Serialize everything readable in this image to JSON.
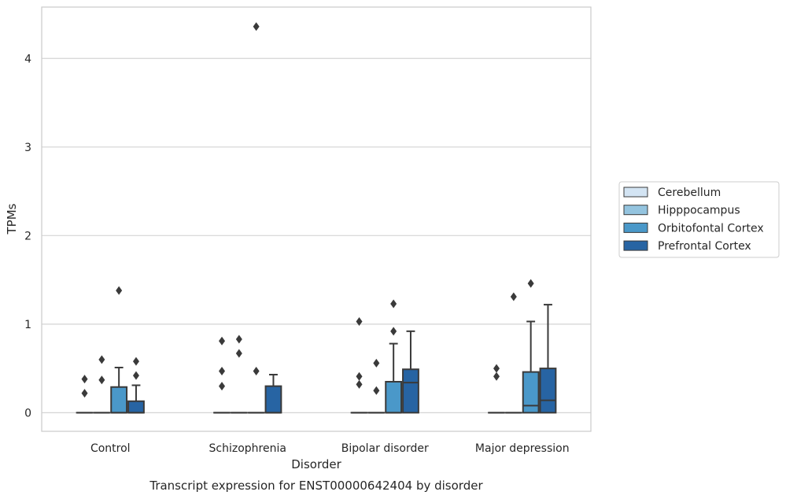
{
  "chart_data": {
    "type": "box",
    "title": "",
    "caption": "Transcript expression for ENST00000642404 by disorder",
    "xlabel": "Disorder",
    "ylabel": "TPMs",
    "ylim": [
      -0.21,
      4.58
    ],
    "yticks": [
      0,
      1,
      2,
      3,
      4
    ],
    "grid": "horizontal",
    "legend_position": "right",
    "categories": [
      "Control",
      "Schizophrenia",
      "Bipolar disorder",
      "Major depression"
    ],
    "series": [
      {
        "name": "Cerebellum",
        "color": "#d3e4f3",
        "boxes": [
          {
            "q1": 0,
            "median": 0,
            "q3": 0,
            "whisker_low": 0,
            "whisker_high": 0,
            "outliers": [
              0.22,
              0.38
            ]
          },
          {
            "q1": 0,
            "median": 0,
            "q3": 0,
            "whisker_low": 0,
            "whisker_high": 0,
            "outliers": [
              0.3,
              0.47,
              0.81
            ]
          },
          {
            "q1": 0,
            "median": 0,
            "q3": 0,
            "whisker_low": 0,
            "whisker_high": 0,
            "outliers": [
              0.32,
              0.41,
              1.03
            ]
          },
          {
            "q1": 0,
            "median": 0,
            "q3": 0,
            "whisker_low": 0,
            "whisker_high": 0,
            "outliers": [
              0.41,
              0.5
            ]
          }
        ]
      },
      {
        "name": "Hipppocampus",
        "color": "#94c4df",
        "boxes": [
          {
            "q1": 0,
            "median": 0,
            "q3": 0,
            "whisker_low": 0,
            "whisker_high": 0,
            "outliers": [
              0.37,
              0.6
            ]
          },
          {
            "q1": 0,
            "median": 0,
            "q3": 0,
            "whisker_low": 0,
            "whisker_high": 0,
            "outliers": [
              0.67,
              0.83
            ]
          },
          {
            "q1": 0,
            "median": 0,
            "q3": 0,
            "whisker_low": 0,
            "whisker_high": 0,
            "outliers": [
              0.25,
              0.56
            ]
          },
          {
            "q1": 0,
            "median": 0,
            "q3": 0,
            "whisker_low": 0,
            "whisker_high": 0,
            "outliers": [
              1.31
            ]
          }
        ]
      },
      {
        "name": "Orbitofontal Cortex",
        "color": "#4a98c9",
        "boxes": [
          {
            "q1": 0,
            "median": 0,
            "q3": 0.29,
            "whisker_low": 0,
            "whisker_high": 0.51,
            "outliers": [
              1.38
            ]
          },
          {
            "q1": 0,
            "median": 0,
            "q3": 0,
            "whisker_low": 0,
            "whisker_high": 0,
            "outliers": [
              0.47,
              4.36
            ]
          },
          {
            "q1": 0,
            "median": 0,
            "q3": 0.35,
            "whisker_low": 0,
            "whisker_high": 0.78,
            "outliers": [
              0.92,
              1.23
            ]
          },
          {
            "q1": 0,
            "median": 0.08,
            "q3": 0.46,
            "whisker_low": 0,
            "whisker_high": 1.03,
            "outliers": [
              1.46
            ]
          }
        ]
      },
      {
        "name": "Prefrontal Cortex",
        "color": "#2764a3",
        "boxes": [
          {
            "q1": 0,
            "median": 0,
            "q3": 0.13,
            "whisker_low": 0,
            "whisker_high": 0.31,
            "outliers": [
              0.42,
              0.58
            ]
          },
          {
            "q1": 0,
            "median": 0,
            "q3": 0.3,
            "whisker_low": 0,
            "whisker_high": 0.43,
            "outliers": []
          },
          {
            "q1": 0,
            "median": 0.34,
            "q3": 0.49,
            "whisker_low": 0,
            "whisker_high": 0.92,
            "outliers": []
          },
          {
            "q1": 0,
            "median": 0.14,
            "q3": 0.5,
            "whisker_low": 0,
            "whisker_high": 1.22,
            "outliers": []
          }
        ]
      }
    ]
  }
}
